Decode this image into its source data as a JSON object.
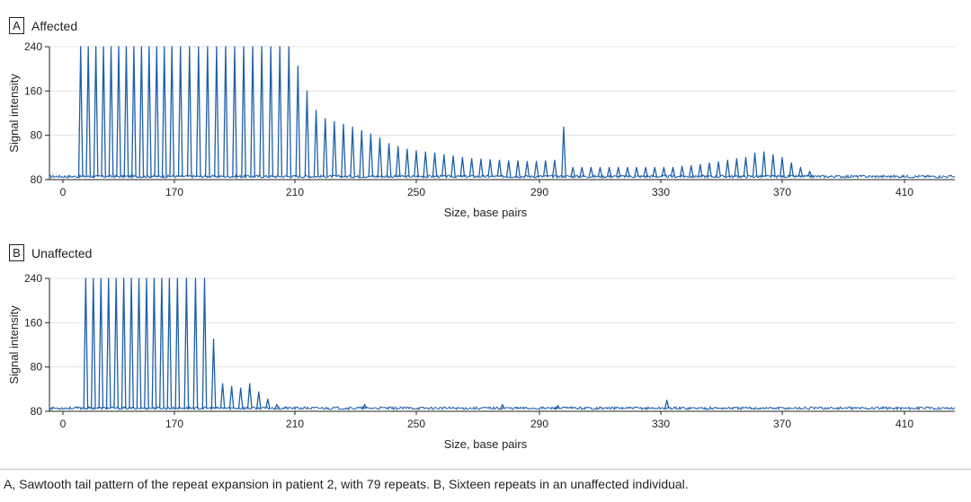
{
  "panels": [
    {
      "letter": "A",
      "title": "Affected"
    },
    {
      "letter": "B",
      "title": "Unaffected"
    }
  ],
  "caption": "A, Sawtooth tail pattern of the repeat expansion in patient 2, with 79 repeats. B, Sixteen repeats in an unaffected individual.",
  "colors": {
    "trace": "#1f5fa8",
    "axis": "#231f20",
    "grid": "#e3e3e3"
  },
  "chart_data": [
    {
      "type": "line",
      "panel": "A",
      "title": "Affected",
      "xlabel": "Size, base pairs",
      "ylabel": "Signal intensity",
      "x_ticks": [
        "0",
        "170",
        "210",
        "250",
        "290",
        "330",
        "370",
        "410"
      ],
      "y_ticks": [
        "80",
        "80",
        "160",
        "240"
      ],
      "ylim": [
        0,
        240
      ],
      "grid": true,
      "clipped_at_top": true,
      "series": [
        {
          "peaks": [
            [
              133,
              240
            ],
            [
              136,
              240
            ],
            [
              139,
              240
            ],
            [
              142,
              240
            ],
            [
              145,
              240
            ],
            [
              148,
              240
            ],
            [
              151,
              240
            ],
            [
              154,
              240
            ],
            [
              157,
              240
            ],
            [
              160,
              240
            ],
            [
              163,
              240
            ],
            [
              166,
              240
            ],
            [
              169,
              240
            ],
            [
              172,
              240
            ],
            [
              175,
              240
            ],
            [
              178,
              240
            ],
            [
              181,
              240
            ],
            [
              184,
              240
            ],
            [
              187,
              240
            ],
            [
              190,
              240
            ],
            [
              193,
              240
            ],
            [
              196,
              240
            ],
            [
              199,
              240
            ],
            [
              202,
              240
            ],
            [
              205,
              240
            ],
            [
              208,
              240
            ],
            [
              211,
              205
            ],
            [
              214,
              160
            ],
            [
              217,
              125
            ],
            [
              220,
              110
            ],
            [
              223,
              105
            ],
            [
              226,
              100
            ],
            [
              229,
              95
            ],
            [
              232,
              88
            ],
            [
              235,
              82
            ],
            [
              238,
              75
            ],
            [
              241,
              65
            ],
            [
              244,
              60
            ],
            [
              247,
              55
            ],
            [
              250,
              52
            ],
            [
              253,
              50
            ],
            [
              256,
              48
            ],
            [
              259,
              45
            ],
            [
              262,
              43
            ],
            [
              265,
              40
            ],
            [
              268,
              38
            ],
            [
              271,
              37
            ],
            [
              274,
              36
            ],
            [
              277,
              35
            ],
            [
              280,
              34
            ],
            [
              283,
              34
            ],
            [
              286,
              33
            ],
            [
              289,
              33
            ],
            [
              292,
              34
            ],
            [
              295,
              35
            ],
            [
              298,
              95
            ],
            [
              301,
              22
            ],
            [
              304,
              22
            ],
            [
              307,
              22
            ],
            [
              310,
              22
            ],
            [
              313,
              22
            ],
            [
              316,
              22
            ],
            [
              319,
              22
            ],
            [
              322,
              22
            ],
            [
              325,
              22
            ],
            [
              328,
              22
            ],
            [
              331,
              22
            ],
            [
              334,
              22
            ],
            [
              337,
              24
            ],
            [
              340,
              25
            ],
            [
              343,
              27
            ],
            [
              346,
              30
            ],
            [
              349,
              32
            ],
            [
              352,
              35
            ],
            [
              355,
              38
            ],
            [
              358,
              40
            ],
            [
              361,
              48
            ],
            [
              364,
              50
            ],
            [
              367,
              45
            ],
            [
              370,
              40
            ],
            [
              373,
              30
            ],
            [
              376,
              22
            ],
            [
              379,
              15
            ]
          ]
        }
      ]
    },
    {
      "type": "line",
      "panel": "B",
      "title": "Unaffected",
      "xlabel": "Size, base pairs",
      "ylabel": "Signal intensity",
      "x_ticks": [
        "0",
        "170",
        "210",
        "250",
        "290",
        "330",
        "370",
        "410"
      ],
      "y_ticks": [
        "80",
        "80",
        "160",
        "240"
      ],
      "ylim": [
        0,
        240
      ],
      "grid": true,
      "clipped_at_top": true,
      "series": [
        {
          "peaks": [
            [
              135,
              240
            ],
            [
              138,
              240
            ],
            [
              141,
              240
            ],
            [
              144,
              240
            ],
            [
              147,
              240
            ],
            [
              150,
              240
            ],
            [
              153,
              240
            ],
            [
              156,
              240
            ],
            [
              159,
              240
            ],
            [
              162,
              240
            ],
            [
              165,
              240
            ],
            [
              168,
              240
            ],
            [
              171,
              240
            ],
            [
              174,
              240
            ],
            [
              177,
              240
            ],
            [
              180,
              240
            ],
            [
              183,
              130
            ],
            [
              186,
              50
            ],
            [
              189,
              45
            ],
            [
              192,
              42
            ],
            [
              195,
              50
            ],
            [
              198,
              35
            ],
            [
              201,
              22
            ],
            [
              204,
              12
            ],
            [
              207,
              8
            ],
            [
              233,
              12
            ],
            [
              278,
              12
            ],
            [
              296,
              10
            ],
            [
              332,
              20
            ]
          ]
        }
      ]
    }
  ]
}
